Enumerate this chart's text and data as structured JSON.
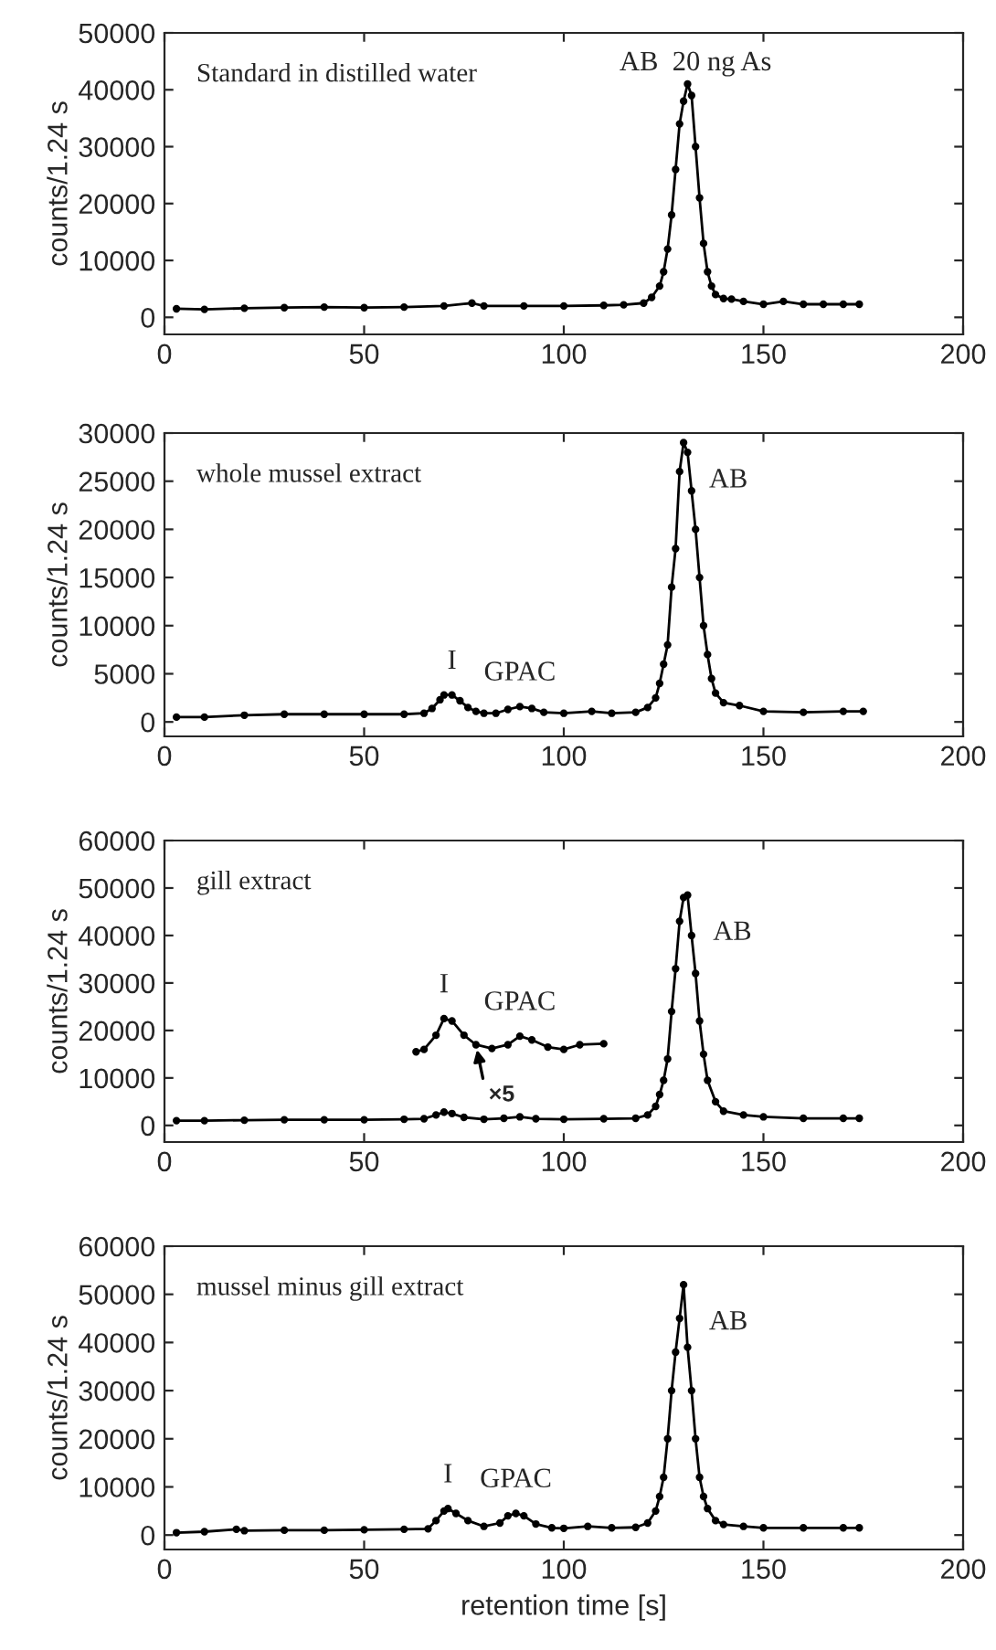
{
  "chart_data": [
    {
      "type": "line",
      "title": "Standard in distilled water",
      "ylabel": "counts/1.24 s",
      "xlim": [
        0,
        200
      ],
      "xticks": [
        0,
        50,
        100,
        150,
        200
      ],
      "ylim": [
        -3000,
        50000
      ],
      "yticks": [
        0,
        10000,
        20000,
        30000,
        40000,
        50000
      ],
      "marker": "circle",
      "line_style": "solid",
      "grid": false,
      "legend": false,
      "series": [
        {
          "color": "#000000",
          "x": [
            3,
            10,
            20,
            30,
            40,
            50,
            60,
            70,
            77,
            80,
            90,
            100,
            110,
            115,
            120,
            122,
            124,
            125,
            126,
            127,
            128,
            129,
            130,
            131,
            132,
            133,
            134,
            135,
            136,
            137,
            138,
            140,
            142,
            145,
            150,
            155,
            160,
            165,
            170,
            174
          ],
          "values": [
            1500,
            1400,
            1600,
            1700,
            1800,
            1700,
            1800,
            2000,
            2500,
            2000,
            2000,
            2000,
            2100,
            2200,
            2500,
            3500,
            5500,
            8000,
            12000,
            18000,
            26000,
            34000,
            38000,
            41000,
            39000,
            30000,
            21000,
            13000,
            8000,
            5500,
            4000,
            3300,
            3200,
            2800,
            2300,
            2800,
            2300,
            2300,
            2300,
            2300
          ]
        }
      ],
      "annotations": [
        "AB  20 ng As"
      ]
    },
    {
      "type": "line",
      "title": "whole mussel extract",
      "ylabel": "counts/1.24 s",
      "xlim": [
        0,
        200
      ],
      "xticks": [
        0,
        50,
        100,
        150,
        200
      ],
      "ylim": [
        -1500,
        30000
      ],
      "yticks": [
        0,
        5000,
        10000,
        15000,
        20000,
        25000,
        30000
      ],
      "marker": "circle",
      "line_style": "solid",
      "grid": false,
      "legend": false,
      "series": [
        {
          "color": "#000000",
          "x": [
            3,
            10,
            20,
            30,
            40,
            50,
            60,
            65,
            67,
            69,
            70,
            72,
            74,
            76,
            78,
            80,
            83,
            86,
            89,
            92,
            95,
            100,
            107,
            112,
            118,
            121,
            123,
            124,
            125,
            126,
            127,
            128,
            129,
            130,
            131,
            132,
            133,
            134,
            135,
            136,
            137,
            138,
            140,
            144,
            150,
            160,
            170,
            175
          ],
          "values": [
            500,
            500,
            700,
            800,
            800,
            800,
            800,
            900,
            1400,
            2300,
            2800,
            2800,
            2200,
            1500,
            1100,
            900,
            900,
            1300,
            1600,
            1400,
            1000,
            900,
            1100,
            900,
            1000,
            1500,
            2500,
            4000,
            6000,
            8000,
            14000,
            18000,
            26000,
            29000,
            28000,
            24000,
            20000,
            15000,
            10000,
            7000,
            4500,
            3000,
            2000,
            1700,
            1100,
            1000,
            1100,
            1100
          ]
        }
      ],
      "annotations": [
        {
          "text": "I",
          "x": 72,
          "y": 2800
        },
        {
          "text": "GPAC",
          "x": 89,
          "y": 1600
        },
        {
          "text": "AB",
          "x": 130,
          "y": 29000
        }
      ]
    },
    {
      "type": "line",
      "title": "gill extract",
      "ylabel": "counts/1.24 s",
      "xlim": [
        0,
        200
      ],
      "xticks": [
        0,
        50,
        100,
        150,
        200
      ],
      "ylim": [
        -3500,
        60000
      ],
      "yticks": [
        0,
        10000,
        20000,
        30000,
        40000,
        50000,
        60000
      ],
      "marker": "circle",
      "line_style": "solid",
      "grid": false,
      "legend": false,
      "series": [
        {
          "color": "#000000",
          "x": [
            3,
            10,
            20,
            30,
            40,
            50,
            60,
            65,
            68,
            70,
            72,
            75,
            80,
            85,
            89,
            93,
            100,
            110,
            118,
            121,
            123,
            124,
            125,
            126,
            127,
            128,
            129,
            130,
            131,
            132,
            133,
            134,
            135,
            136,
            138,
            140,
            145,
            150,
            160,
            170,
            174
          ],
          "values": [
            1000,
            1000,
            1100,
            1200,
            1200,
            1200,
            1300,
            1400,
            2200,
            2800,
            2500,
            1700,
            1300,
            1500,
            1800,
            1400,
            1300,
            1400,
            1500,
            2200,
            4000,
            6500,
            9500,
            14000,
            24000,
            33000,
            43000,
            48000,
            48500,
            40000,
            32000,
            22000,
            15000,
            9500,
            5000,
            3000,
            2200,
            1800,
            1500,
            1500,
            1500
          ]
        },
        {
          "color": "#000000",
          "x": [
            63,
            65,
            68,
            70,
            72,
            75,
            78,
            82,
            86,
            89,
            92,
            96,
            100,
            104,
            110
          ],
          "values": [
            15500,
            16000,
            19000,
            22500,
            22000,
            19000,
            17000,
            16200,
            17000,
            18800,
            18000,
            16500,
            16000,
            17000,
            17200
          ]
        }
      ],
      "annotations": [
        {
          "text": "I",
          "x": 70,
          "y": 22500
        },
        {
          "text": "GPAC",
          "x": 89,
          "y": 18800
        },
        {
          "text": "AB",
          "x": 131,
          "y": 48500
        },
        {
          "text": "×5",
          "x": 78,
          "y": 17000
        }
      ]
    },
    {
      "type": "line",
      "title": "mussel minus gill extract",
      "ylabel": "counts/1.24 s",
      "xlabel": "retention time [s]",
      "xlim": [
        0,
        200
      ],
      "xticks": [
        0,
        50,
        100,
        150,
        200
      ],
      "ylim": [
        -3000,
        60000
      ],
      "yticks": [
        0,
        10000,
        20000,
        30000,
        40000,
        50000,
        60000
      ],
      "marker": "circle",
      "line_style": "solid",
      "grid": false,
      "legend": false,
      "series": [
        {
          "color": "#000000",
          "x": [
            3,
            10,
            18,
            20,
            30,
            40,
            50,
            60,
            66,
            68,
            70,
            71,
            73,
            76,
            80,
            84,
            86,
            88,
            90,
            93,
            97,
            100,
            106,
            112,
            118,
            121,
            123,
            124,
            125,
            126,
            127,
            128,
            129,
            130,
            131,
            132,
            133,
            134,
            135,
            136,
            138,
            140,
            145,
            150,
            160,
            170,
            174
          ],
          "values": [
            500,
            700,
            1200,
            900,
            1000,
            1000,
            1100,
            1200,
            1300,
            3000,
            5000,
            5500,
            4500,
            3000,
            1800,
            2500,
            4000,
            4500,
            4000,
            2300,
            1500,
            1400,
            1800,
            1500,
            1600,
            2500,
            5000,
            8000,
            12000,
            20000,
            30000,
            38000,
            45000,
            52000,
            39000,
            30000,
            20000,
            12000,
            8000,
            5500,
            3000,
            2200,
            1800,
            1500,
            1500,
            1500,
            1500
          ]
        }
      ],
      "annotations": [
        {
          "text": "I",
          "x": 71,
          "y": 5500
        },
        {
          "text": "GPAC",
          "x": 88,
          "y": 4500
        },
        {
          "text": "AB",
          "x": 130,
          "y": 52000
        }
      ]
    }
  ]
}
